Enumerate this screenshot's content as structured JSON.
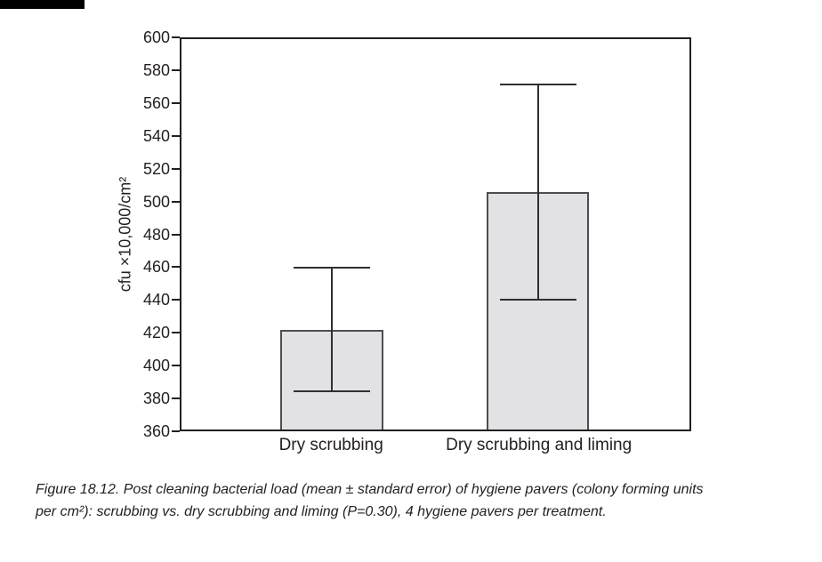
{
  "page": {
    "background_color": "#ffffff",
    "header_bar_color": "#000000"
  },
  "chart_data": {
    "type": "bar",
    "title": "",
    "categories": [
      "Dry scrubbing",
      "Dry scrubbing and liming"
    ],
    "values": [
      421.5,
      506
    ],
    "error_bars": {
      "low": [
        383.5,
        440
      ],
      "high": [
        459.5,
        572
      ]
    },
    "ylabel": "cfu ×10,000/cm²",
    "xlabel": "",
    "ylim": [
      360,
      600
    ],
    "ytick_step": 20,
    "yticks": [
      360,
      380,
      400,
      420,
      440,
      460,
      480,
      500,
      520,
      540,
      560,
      580,
      600
    ],
    "grid": false,
    "legend": false,
    "bar_fill": "#e2e2e4",
    "bar_border": "#4d4e50",
    "axis_color": "#231f20",
    "layout": {
      "bar_center_pct": [
        29.6,
        70.2
      ],
      "bar_width_pct": 20.2,
      "cap_width_pct": 15
    }
  },
  "caption": {
    "line1": "Figure 18.12. Post cleaning bacterial load (mean ± standard error) of hygiene pavers (colony forming units",
    "line2": "per cm²): scrubbing vs. dry scrubbing and liming (P=0.30), 4 hygiene pavers per treatment."
  }
}
